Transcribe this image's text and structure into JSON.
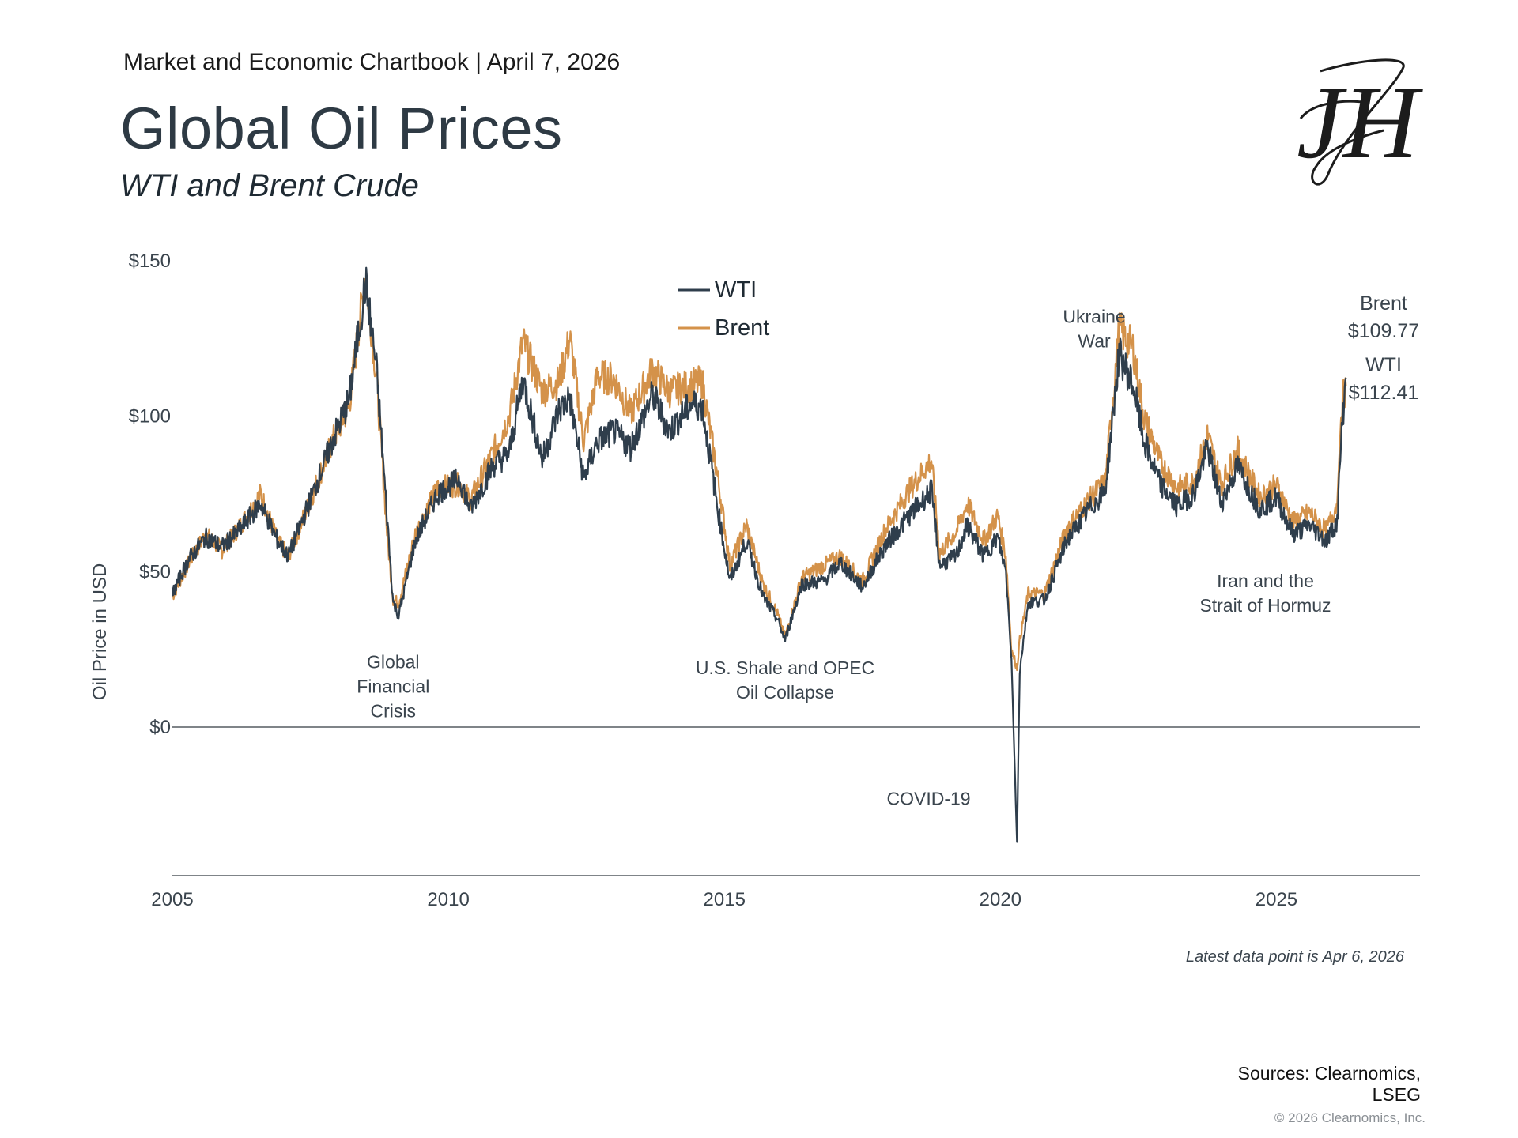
{
  "header": {
    "chartbook": "Market and Economic Chartbook | April 7, 2026",
    "title": "Global Oil Prices",
    "subtitle": "WTI and Brent Crude"
  },
  "logo": {
    "mark": "JH",
    "icon": "monogram-logo"
  },
  "colors": {
    "wti": "#2f3e4c",
    "brent": "#d4924a",
    "axis": "#555b61",
    "text": "#3a444d"
  },
  "chart_data": {
    "type": "line",
    "title": "Global Oil Prices",
    "subtitle": "WTI and Brent Crude",
    "xlabel": "",
    "ylabel": "Oil Price in USD",
    "xlim": [
      2005,
      2027.6
    ],
    "ylim": [
      -48,
      150
    ],
    "x_ticks": [
      2005,
      2010,
      2015,
      2020,
      2025
    ],
    "x_tick_labels": [
      "2005",
      "2010",
      "2015",
      "2020",
      "2025"
    ],
    "y_ticks": [
      0,
      50,
      100,
      150
    ],
    "y_tick_labels": [
      "$0",
      "$50",
      "$100",
      "$150"
    ],
    "legend": {
      "position": "top-center",
      "entries": [
        "WTI",
        "Brent"
      ]
    },
    "series": [
      {
        "name": "WTI",
        "points": [
          [
            2005.0,
            43
          ],
          [
            2005.3,
            54
          ],
          [
            2005.6,
            61
          ],
          [
            2005.9,
            58
          ],
          [
            2006.2,
            63
          ],
          [
            2006.6,
            72
          ],
          [
            2006.9,
            60
          ],
          [
            2007.1,
            55
          ],
          [
            2007.5,
            73
          ],
          [
            2007.9,
            92
          ],
          [
            2008.2,
            105
          ],
          [
            2008.5,
            143
          ],
          [
            2008.7,
            115
          ],
          [
            2008.9,
            65
          ],
          [
            2009.0,
            40
          ],
          [
            2009.1,
            36
          ],
          [
            2009.4,
            60
          ],
          [
            2009.8,
            75
          ],
          [
            2010.2,
            80
          ],
          [
            2010.4,
            70
          ],
          [
            2010.8,
            84
          ],
          [
            2011.1,
            88
          ],
          [
            2011.35,
            112
          ],
          [
            2011.7,
            86
          ],
          [
            2012.0,
            102
          ],
          [
            2012.2,
            106
          ],
          [
            2012.45,
            80
          ],
          [
            2012.7,
            92
          ],
          [
            2013.0,
            95
          ],
          [
            2013.3,
            90
          ],
          [
            2013.7,
            107
          ],
          [
            2014.0,
            95
          ],
          [
            2014.4,
            104
          ],
          [
            2014.6,
            103
          ],
          [
            2014.9,
            68
          ],
          [
            2015.1,
            47
          ],
          [
            2015.4,
            60
          ],
          [
            2015.7,
            42
          ],
          [
            2015.95,
            35
          ],
          [
            2016.1,
            28
          ],
          [
            2016.4,
            46
          ],
          [
            2016.8,
            47
          ],
          [
            2017.1,
            53
          ],
          [
            2017.5,
            45
          ],
          [
            2017.9,
            58
          ],
          [
            2018.3,
            67
          ],
          [
            2018.75,
            76
          ],
          [
            2018.9,
            52
          ],
          [
            2019.2,
            55
          ],
          [
            2019.4,
            65
          ],
          [
            2019.7,
            55
          ],
          [
            2019.95,
            61
          ],
          [
            2020.1,
            50
          ],
          [
            2020.2,
            22
          ],
          [
            2020.3,
            -37
          ],
          [
            2020.35,
            18
          ],
          [
            2020.5,
            40
          ],
          [
            2020.8,
            41
          ],
          [
            2021.2,
            60
          ],
          [
            2021.6,
            70
          ],
          [
            2021.9,
            76
          ],
          [
            2022.15,
            120
          ],
          [
            2022.4,
            110
          ],
          [
            2022.6,
            92
          ],
          [
            2022.9,
            78
          ],
          [
            2023.2,
            71
          ],
          [
            2023.5,
            75
          ],
          [
            2023.75,
            90
          ],
          [
            2024.0,
            72
          ],
          [
            2024.3,
            84
          ],
          [
            2024.7,
            70
          ],
          [
            2025.0,
            74
          ],
          [
            2025.3,
            62
          ],
          [
            2025.6,
            65
          ],
          [
            2025.9,
            60
          ],
          [
            2026.1,
            66
          ],
          [
            2026.18,
            95
          ],
          [
            2026.26,
            112.41
          ]
        ]
      },
      {
        "name": "Brent",
        "points": [
          [
            2005.0,
            42
          ],
          [
            2005.3,
            53
          ],
          [
            2005.6,
            62
          ],
          [
            2005.9,
            57
          ],
          [
            2006.2,
            64
          ],
          [
            2006.6,
            75
          ],
          [
            2006.9,
            60
          ],
          [
            2007.1,
            55
          ],
          [
            2007.5,
            73
          ],
          [
            2007.9,
            92
          ],
          [
            2008.2,
            103
          ],
          [
            2008.5,
            146
          ],
          [
            2008.7,
            112
          ],
          [
            2008.9,
            60
          ],
          [
            2009.0,
            41
          ],
          [
            2009.1,
            40
          ],
          [
            2009.4,
            62
          ],
          [
            2009.8,
            77
          ],
          [
            2010.2,
            78
          ],
          [
            2010.4,
            73
          ],
          [
            2010.8,
            88
          ],
          [
            2011.1,
            100
          ],
          [
            2011.35,
            124
          ],
          [
            2011.7,
            108
          ],
          [
            2012.0,
            111
          ],
          [
            2012.2,
            125
          ],
          [
            2012.45,
            92
          ],
          [
            2012.7,
            113
          ],
          [
            2013.0,
            112
          ],
          [
            2013.3,
            101
          ],
          [
            2013.7,
            115
          ],
          [
            2014.0,
            108
          ],
          [
            2014.4,
            110
          ],
          [
            2014.6,
            111
          ],
          [
            2014.9,
            78
          ],
          [
            2015.1,
            52
          ],
          [
            2015.4,
            65
          ],
          [
            2015.7,
            46
          ],
          [
            2015.95,
            37
          ],
          [
            2016.1,
            29
          ],
          [
            2016.4,
            48
          ],
          [
            2016.8,
            52
          ],
          [
            2017.1,
            55
          ],
          [
            2017.5,
            47
          ],
          [
            2017.9,
            63
          ],
          [
            2018.3,
            75
          ],
          [
            2018.75,
            86
          ],
          [
            2018.9,
            56
          ],
          [
            2019.2,
            63
          ],
          [
            2019.4,
            72
          ],
          [
            2019.7,
            60
          ],
          [
            2019.95,
            68
          ],
          [
            2020.1,
            55
          ],
          [
            2020.2,
            25
          ],
          [
            2020.3,
            19
          ],
          [
            2020.35,
            28
          ],
          [
            2020.5,
            43
          ],
          [
            2020.8,
            43
          ],
          [
            2021.2,
            64
          ],
          [
            2021.6,
            73
          ],
          [
            2021.9,
            79
          ],
          [
            2022.15,
            128
          ],
          [
            2022.4,
            122
          ],
          [
            2022.6,
            100
          ],
          [
            2022.9,
            85
          ],
          [
            2023.2,
            77
          ],
          [
            2023.5,
            79
          ],
          [
            2023.75,
            94
          ],
          [
            2024.0,
            78
          ],
          [
            2024.3,
            89
          ],
          [
            2024.7,
            74
          ],
          [
            2025.0,
            78
          ],
          [
            2025.3,
            66
          ],
          [
            2025.6,
            69
          ],
          [
            2025.9,
            63
          ],
          [
            2026.1,
            72
          ],
          [
            2026.18,
            104
          ],
          [
            2026.26,
            109.77
          ]
        ]
      }
    ],
    "end_labels": [
      {
        "series": "Brent",
        "name": "Brent",
        "value": "$109.77"
      },
      {
        "series": "WTI",
        "name": "WTI",
        "value": "$112.41"
      }
    ],
    "annotations": [
      {
        "id": "gfc",
        "lines": [
          "Global",
          "Financial",
          "Crisis"
        ],
        "x": 2009.0,
        "y": 19
      },
      {
        "id": "shale",
        "lines": [
          "U.S. Shale and OPEC",
          "Oil Collapse"
        ],
        "x": 2016.1,
        "y": 17
      },
      {
        "id": "covid",
        "lines": [
          "COVID-19"
        ],
        "x": 2018.7,
        "y": -25
      },
      {
        "id": "ukraine",
        "lines": [
          "Ukraine",
          "War"
        ],
        "x": 2021.7,
        "y": 130
      },
      {
        "id": "iran",
        "lines": [
          "Iran and the",
          "Strait of Hormuz"
        ],
        "x": 2024.8,
        "y": 45
      }
    ]
  },
  "footer": {
    "latest_note": "Latest data point is Apr 6, 2026",
    "sources_line1": "Sources: Clearnomics,",
    "sources_line2": "LSEG",
    "copyright": "© 2026 Clearnomics, Inc."
  }
}
